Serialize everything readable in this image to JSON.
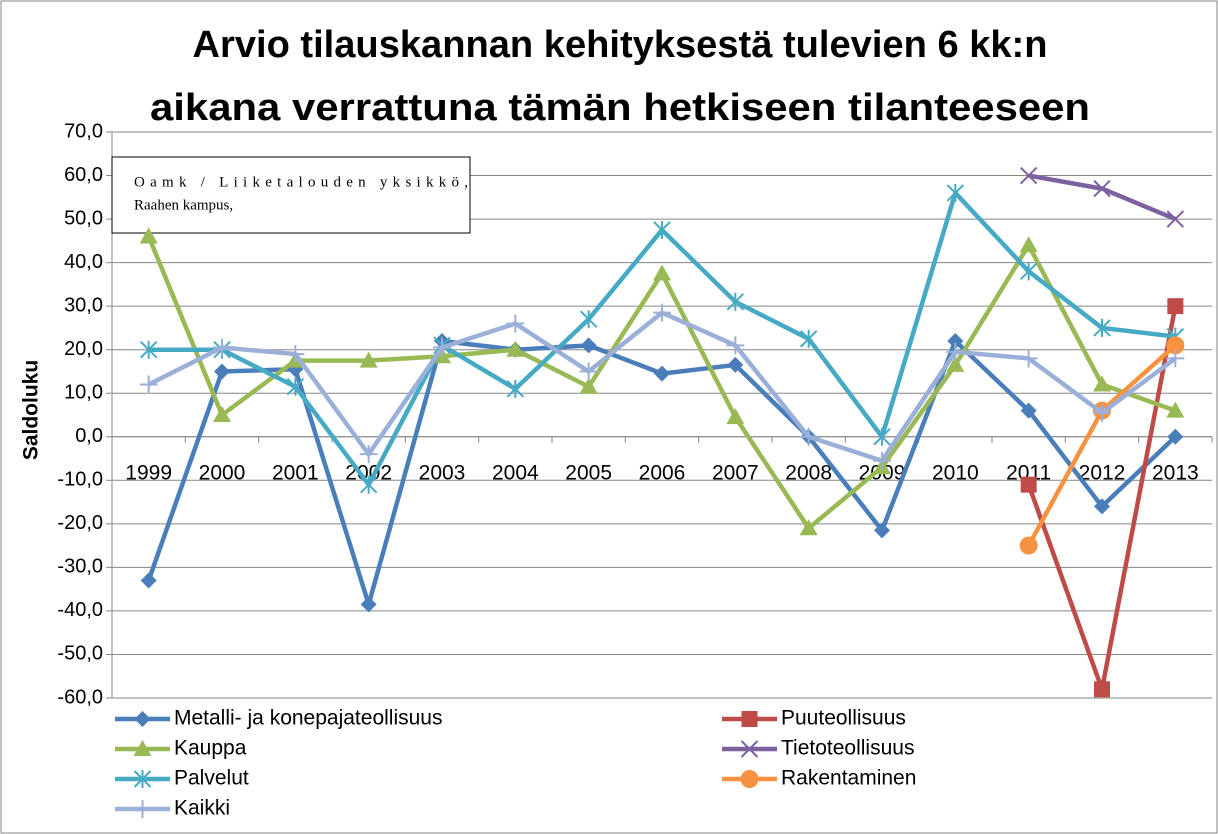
{
  "chart_data": {
    "type": "line",
    "title": [
      "Arvio tilauskannan kehityksestä tulevien 6 kk:n",
      "aikana verrattuna tämän hetkiseen tilanteeseen"
    ],
    "annotation": [
      "Oamk / Liiketalouden yksikkö,",
      "Raahen kampus,"
    ],
    "y_label": "Saldoluku",
    "categories": [
      "1999",
      "2000",
      "2001",
      "2002",
      "2003",
      "2004",
      "2005",
      "2006",
      "2007",
      "2008",
      "2009",
      "2010",
      "2011",
      "2012",
      "2013"
    ],
    "series": [
      {
        "name": "Metalli- ja konepajateollisuus",
        "color": "#4a7ebb",
        "marker": "diamond",
        "values": [
          -33,
          15,
          15.5,
          -38.5,
          22,
          20,
          21,
          14.5,
          16.5,
          0,
          -21.5,
          22,
          6,
          -16,
          0
        ]
      },
      {
        "name": "Puuteollisuus",
        "color": "#be4b48",
        "marker": "square",
        "values": [
          null,
          null,
          null,
          null,
          null,
          null,
          null,
          null,
          null,
          null,
          null,
          null,
          -11,
          -58,
          30
        ]
      },
      {
        "name": "Kauppa",
        "color": "#98b954",
        "marker": "triangle",
        "values": [
          46,
          5,
          17.5,
          17.5,
          18.5,
          20,
          11.5,
          37.5,
          4.5,
          -21,
          -7,
          16.5,
          44,
          12,
          6
        ]
      },
      {
        "name": "Tietoteollisuus",
        "color": "#7d60a0",
        "marker": "x",
        "values": [
          null,
          null,
          null,
          null,
          null,
          null,
          null,
          null,
          null,
          null,
          null,
          null,
          60,
          57,
          50
        ]
      },
      {
        "name": "Palvelut",
        "color": "#46aac5",
        "marker": "star",
        "values": [
          20,
          20,
          11.5,
          -11,
          21,
          11,
          27,
          47.5,
          31,
          22.5,
          0,
          56,
          38,
          25,
          23
        ]
      },
      {
        "name": "Rakentaminen",
        "color": "#f69240",
        "marker": "circle",
        "values": [
          null,
          null,
          null,
          null,
          null,
          null,
          null,
          null,
          null,
          null,
          null,
          null,
          -25,
          6,
          21
        ]
      },
      {
        "name": "Kaikki",
        "color": "#9bb0d8",
        "marker": "plus",
        "values": [
          12,
          20.5,
          19,
          -4,
          20.5,
          26,
          15,
          28.5,
          21,
          0,
          -5.5,
          19.5,
          18,
          5.5,
          18
        ]
      }
    ],
    "ylim": [
      -60,
      70
    ],
    "yticks": [
      {
        "value": -60,
        "label": "-60,0"
      },
      {
        "value": -50,
        "label": "-50,0"
      },
      {
        "value": -40,
        "label": "-40,0"
      },
      {
        "value": -30,
        "label": "-30,0"
      },
      {
        "value": -20,
        "label": "-20,0"
      },
      {
        "value": -10,
        "label": "-10,0"
      },
      {
        "value": 0,
        "label": "0,0"
      },
      {
        "value": 10,
        "label": "10,0"
      },
      {
        "value": 20,
        "label": "20,0"
      },
      {
        "value": 30,
        "label": "30,0"
      },
      {
        "value": 40,
        "label": "40,0"
      },
      {
        "value": 50,
        "label": "50,0"
      },
      {
        "value": 60,
        "label": "60,0"
      },
      {
        "value": 70,
        "label": "70,0"
      }
    ],
    "grid": true,
    "legend": "bottom"
  }
}
